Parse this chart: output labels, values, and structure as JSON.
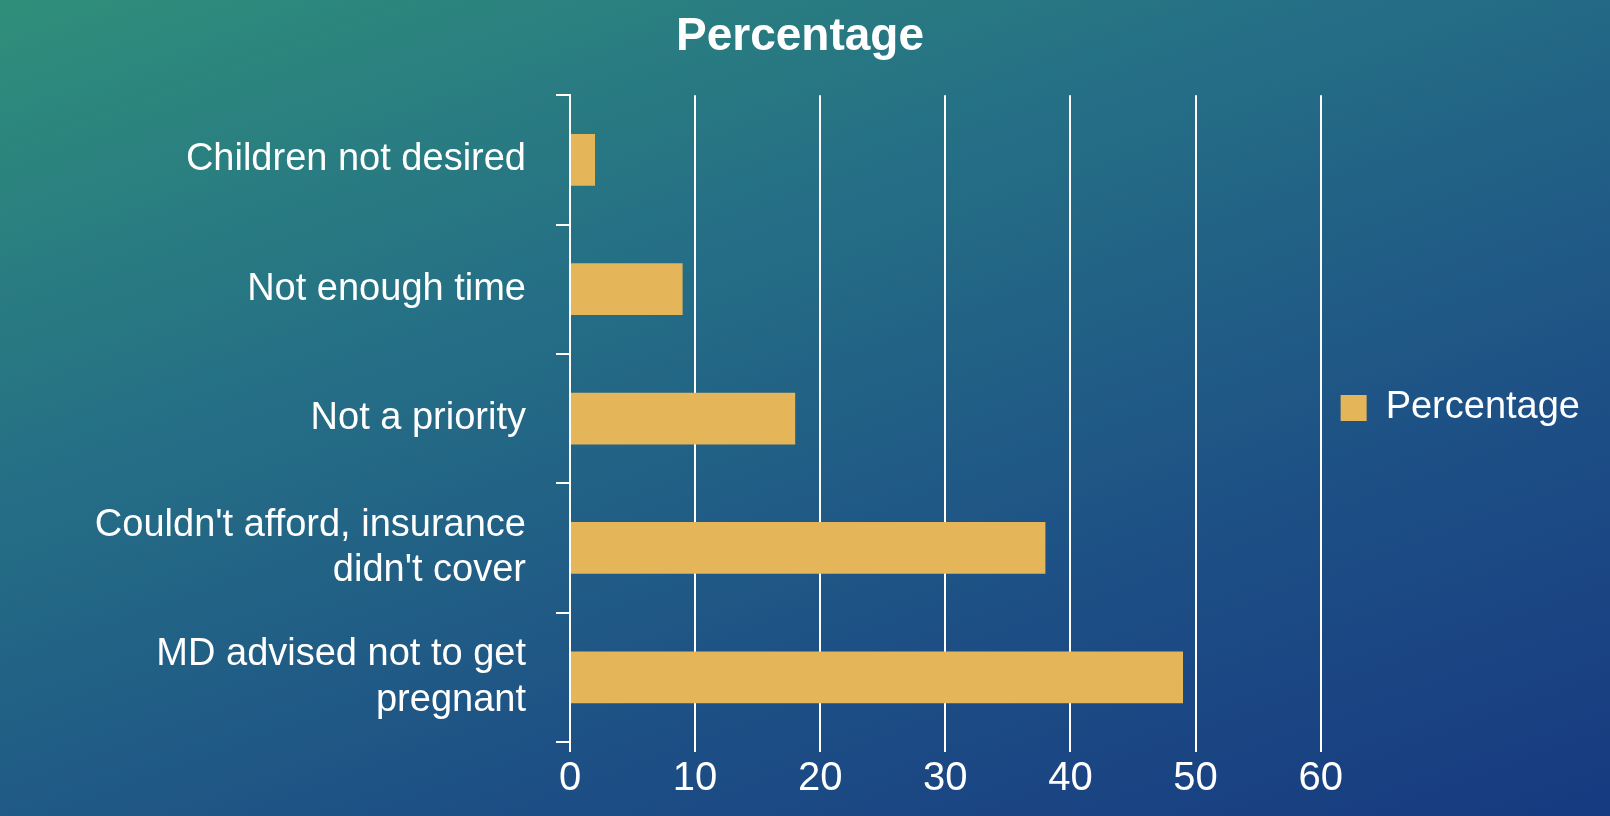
{
  "chart_data": {
    "type": "bar",
    "orientation": "horizontal",
    "title": "Percentage",
    "categories": [
      "Children not desired",
      "Not enough time",
      "Not a priority",
      "Couldn't afford, insurance didn't cover",
      "MD advised not to get pregnant"
    ],
    "series": [
      {
        "name": "Percentage",
        "color": "#e5b55a",
        "values": [
          2,
          9,
          18,
          38,
          49
        ]
      }
    ],
    "xlim": [
      0,
      60
    ],
    "xticks": [
      0,
      10,
      20,
      30,
      40,
      50,
      60
    ],
    "grid": "x",
    "legend": "right"
  }
}
